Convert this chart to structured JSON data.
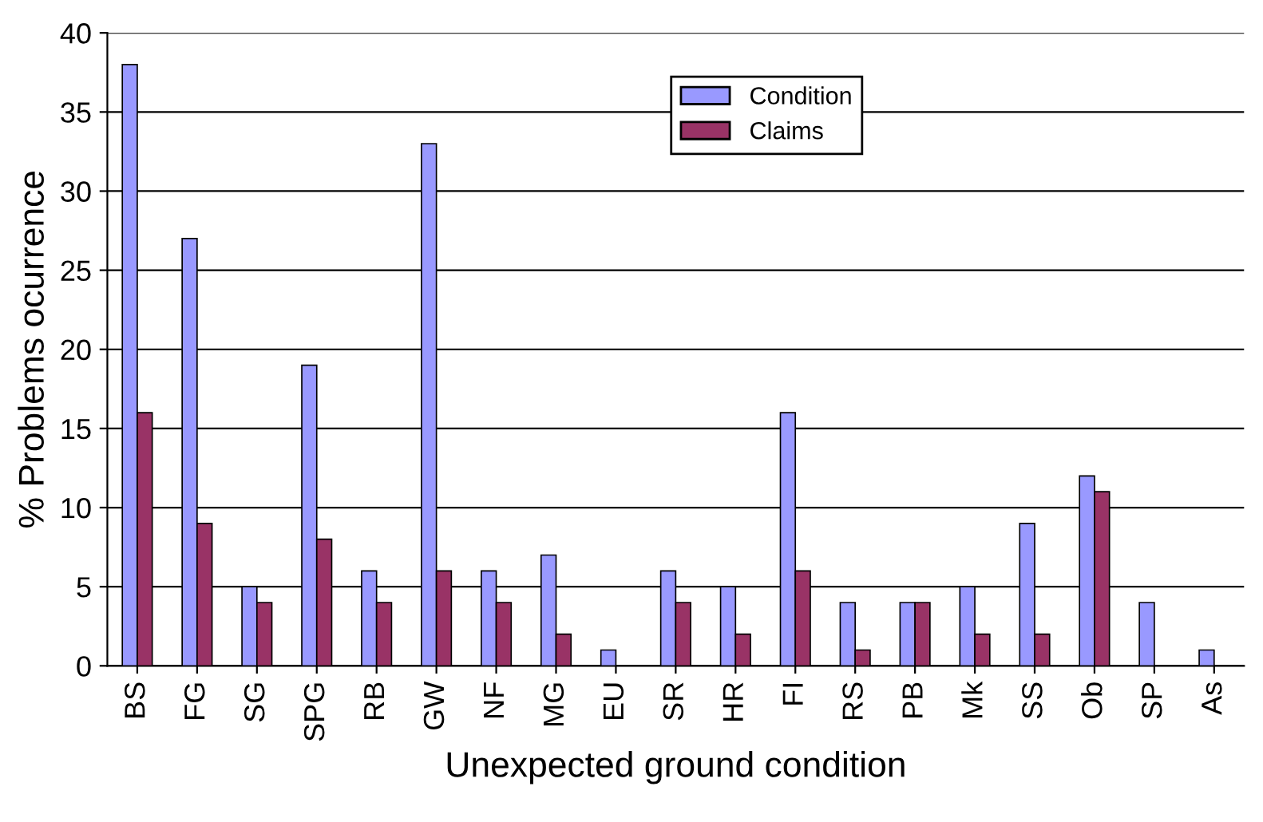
{
  "chart_data": {
    "type": "bar",
    "xlabel": "Unexpected ground condition",
    "ylabel": "% Problems ocurrence",
    "categories": [
      "BS",
      "FG",
      "SG",
      "SPG",
      "RB",
      "GW",
      "NF",
      "MG",
      "EU",
      "SR",
      "HR",
      "FI",
      "RS",
      "PB",
      "Mk",
      "SS",
      "Ob",
      "SP",
      "As"
    ],
    "series": [
      {
        "name": "Condition",
        "color": "#9999ff",
        "values": [
          38,
          27,
          5,
          19,
          6,
          33,
          6,
          7,
          1,
          6,
          5,
          16,
          4,
          4,
          5,
          9,
          12,
          4,
          1
        ]
      },
      {
        "name": "Claims",
        "color": "#993366",
        "values": [
          16,
          9,
          4,
          8,
          4,
          6,
          4,
          2,
          null,
          4,
          2,
          6,
          1,
          4,
          2,
          2,
          11,
          null,
          null
        ]
      }
    ],
    "ylim": [
      0,
      40
    ],
    "yticks": [
      0,
      5,
      10,
      15,
      20,
      25,
      30,
      35,
      40
    ],
    "grid": "y",
    "legend": "top"
  }
}
